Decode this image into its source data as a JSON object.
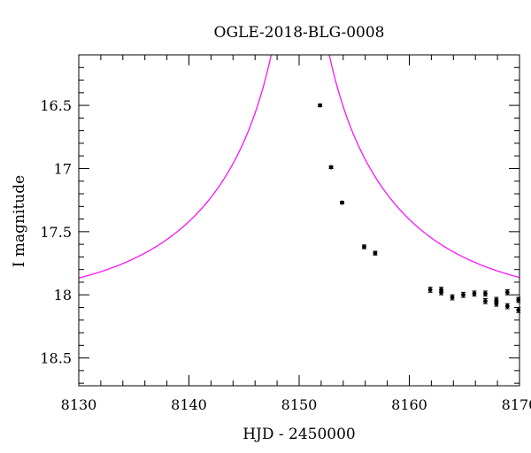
{
  "chart_data": {
    "type": "scatter",
    "title": "OGLE-2018-BLG-0008",
    "xlabel": "HJD - 2450000",
    "ylabel": "I magnitude",
    "xlim": [
      8130,
      8170
    ],
    "ylim": [
      18.72,
      16.1
    ],
    "y_inverted": true,
    "grid": false,
    "x_ticks": [
      "8130",
      "8140",
      "8150",
      "8160",
      "8170"
    ],
    "y_ticks": [
      "16.5",
      "17",
      "17.5",
      "18",
      "18.5"
    ],
    "series": [
      {
        "type": "scatter",
        "color": "#000000",
        "x": [
          8151.9,
          8152.9,
          8153.9,
          8155.9,
          8156.9,
          8161.9,
          8162.9,
          8162.9,
          8163.9,
          8164.9,
          8165.9,
          8166.9,
          8166.9,
          8167.9,
          8167.9,
          8168.9,
          8168.9,
          8169.9,
          8169.9
        ],
        "y": [
          16.5,
          16.99,
          17.27,
          17.62,
          17.67,
          17.96,
          17.96,
          17.98,
          18.02,
          18.0,
          17.99,
          17.99,
          18.05,
          18.04,
          18.07,
          17.98,
          18.09,
          18.04,
          18.12
        ],
        "y_err": [
          0.01,
          0.01,
          0.01,
          0.015,
          0.015,
          0.02,
          0.02,
          0.02,
          0.02,
          0.02,
          0.02,
          0.02,
          0.02,
          0.02,
          0.02,
          0.02,
          0.02,
          0.02,
          0.02
        ]
      },
      {
        "type": "line",
        "color": "#ff00ff",
        "model": "paczynski",
        "params": {
          "t0": 8150.1,
          "u0": 0.012,
          "tE": 16.5,
          "I_base": 18.08,
          "fs": 0.98
        },
        "x_range": [
          8130,
          8170
        ]
      }
    ]
  }
}
